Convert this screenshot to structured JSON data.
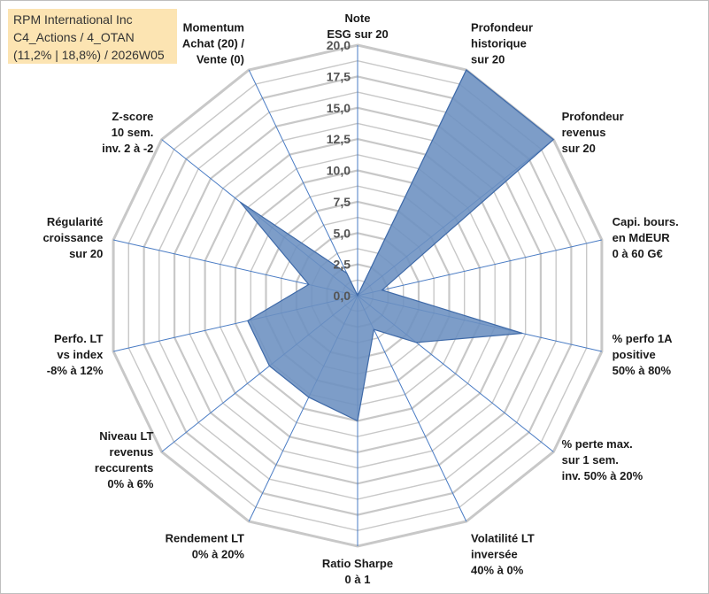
{
  "title_box": {
    "line1": "RPM International Inc",
    "line2": "C4_Actions / 4_OTAN",
    "line3": "(11,2% | 18,8%) / 2026W05"
  },
  "chart_data": {
    "type": "radar",
    "title": "RPM International Inc",
    "subtitle": "C4_Actions / 4_OTAN (11,2% | 18,8%) / 2026W05",
    "rlim": [
      0,
      20
    ],
    "ticks": [
      "0,0",
      "2,5",
      "5,0",
      "7,5",
      "10,0",
      "12,5",
      "15,0",
      "17,5",
      "20,0"
    ],
    "tick_values": [
      0,
      2.5,
      5,
      7.5,
      10,
      12.5,
      15,
      17.5,
      20
    ],
    "grid": true,
    "fill_color": "#6b8fc0",
    "line_color": "#3f6aa8",
    "grid_color": "#c8c8c8",
    "spoke_color": "#4a7cc4",
    "axes": [
      {
        "label": [
          "Note",
          "ESG sur 20"
        ],
        "value": 0.0
      },
      {
        "label": [
          "Profondeur",
          "historique",
          "sur 20"
        ],
        "value": 20.0
      },
      {
        "label": [
          "Profondeur",
          "revenus",
          "sur 20"
        ],
        "value": 20.0
      },
      {
        "label": [
          "Capi. bours.",
          "en MdEUR",
          "0 à 60 G€"
        ],
        "value": 2.0
      },
      {
        "label": [
          "% perfo 1A",
          "positive",
          "50% à 80%"
        ],
        "value": 13.5
      },
      {
        "label": [
          "% perte max.",
          "sur 1 sem.",
          "inv. 50% à 20%"
        ],
        "value": 6.0
      },
      {
        "label": [
          "Volatilité LT",
          "inversée",
          "40% à 0%"
        ],
        "value": 3.0
      },
      {
        "label": [
          "Ratio Sharpe",
          "0 à 1"
        ],
        "value": 10.0
      },
      {
        "label": [
          "Rendement LT",
          "0% à 20%"
        ],
        "value": 9.0
      },
      {
        "label": [
          "Niveau LT",
          "revenus",
          "reccurents",
          "0% à 6%"
        ],
        "value": 9.0
      },
      {
        "label": [
          "Perfo. LT",
          "vs index",
          "-8% à 12%"
        ],
        "value": 9.0
      },
      {
        "label": [
          "Régularité",
          "croissance",
          "sur 20"
        ],
        "value": 4.0
      },
      {
        "label": [
          "Z-score",
          "10 sem.",
          "inv. 2 à -2"
        ],
        "value": 12.0
      },
      {
        "label": [
          "Momentum",
          "Achat (20) /",
          "Vente (0)"
        ],
        "value": 2.0
      }
    ]
  }
}
